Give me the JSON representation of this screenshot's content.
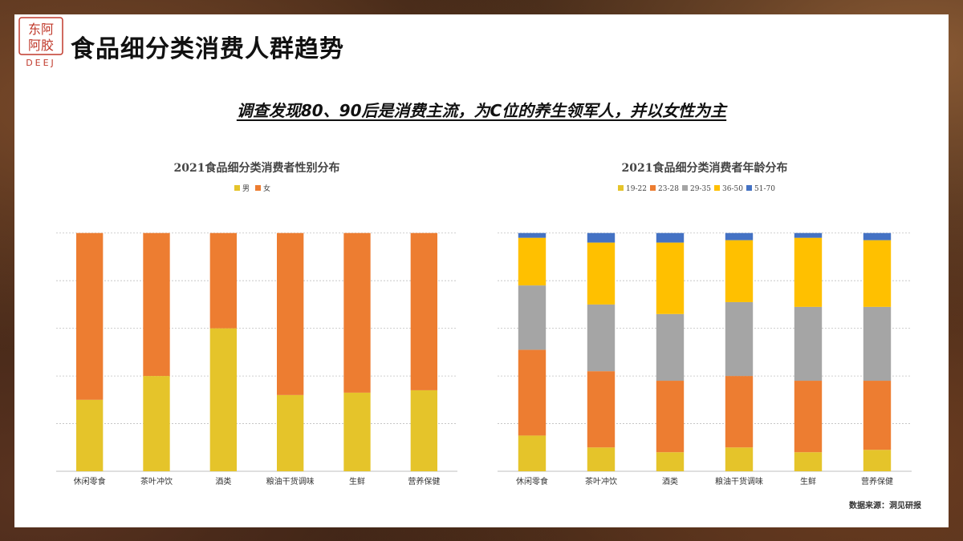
{
  "header": {
    "title": "食品细分类消费人群趋势",
    "logo_text": [
      "东阿",
      "阿胶"
    ],
    "logo_sub": "DEEJ"
  },
  "subtitle": "调查发现80、90后是消费主流，为C位的养生领军人，并以女性为主",
  "source": "数据来源：洞见研报",
  "colors": {
    "yellow": "#E5C42A",
    "orange": "#ED7D31",
    "gray": "#A5A5A5",
    "gold": "#FFC000",
    "blue": "#4472C4",
    "brand_red": "#C0392B"
  },
  "chart_data": [
    {
      "type": "bar",
      "stacked": true,
      "title": "2021食品细分类消费者性别分布",
      "legend_position": "top",
      "categories": [
        "休闲零食",
        "茶叶冲饮",
        "酒类",
        "粮油干货调味",
        "生鲜",
        "营养保健"
      ],
      "ylim": [
        0,
        1.1
      ],
      "grid": true,
      "series": [
        {
          "name": "男",
          "color": "#E5C42A",
          "values": [
            0.3,
            0.4,
            0.6,
            0.32,
            0.33,
            0.34
          ]
        },
        {
          "name": "女",
          "color": "#ED7D31",
          "values": [
            0.7,
            0.6,
            0.4,
            0.68,
            0.67,
            0.66
          ]
        }
      ]
    },
    {
      "type": "bar",
      "stacked": true,
      "title": "2021食品细分类消费者年龄分布",
      "legend_position": "top",
      "categories": [
        "休闲零食",
        "茶叶冲饮",
        "酒类",
        "粮油干货调味",
        "生鲜",
        "营养保健"
      ],
      "ylim": [
        0,
        1.1
      ],
      "grid": true,
      "series": [
        {
          "name": "19-22",
          "color": "#E5C42A",
          "values": [
            0.15,
            0.1,
            0.08,
            0.1,
            0.08,
            0.09
          ]
        },
        {
          "name": "23-28",
          "color": "#ED7D31",
          "values": [
            0.36,
            0.32,
            0.3,
            0.3,
            0.3,
            0.29
          ]
        },
        {
          "name": "29-35",
          "color": "#A5A5A5",
          "values": [
            0.27,
            0.28,
            0.28,
            0.31,
            0.31,
            0.31
          ]
        },
        {
          "name": "36-50",
          "color": "#FFC000",
          "values": [
            0.2,
            0.26,
            0.3,
            0.26,
            0.29,
            0.28
          ]
        },
        {
          "name": "51-70",
          "color": "#4472C4",
          "values": [
            0.02,
            0.04,
            0.04,
            0.03,
            0.02,
            0.03
          ]
        }
      ]
    }
  ]
}
